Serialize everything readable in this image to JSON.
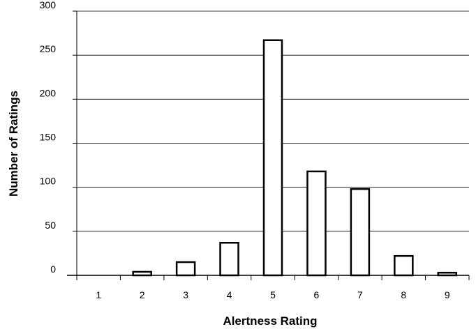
{
  "chart_data": {
    "type": "bar",
    "title": "",
    "xlabel": "Alertness Rating",
    "ylabel": "Number of Ratings",
    "categories": [
      "1",
      "2",
      "3",
      "4",
      "5",
      "6",
      "7",
      "8",
      "9"
    ],
    "values": [
      0,
      4,
      15,
      37,
      267,
      118,
      98,
      22,
      3
    ],
    "ylim": [
      0,
      300
    ],
    "yticks": [
      0,
      50,
      100,
      150,
      200,
      250,
      300
    ],
    "grid": true,
    "legend": "none",
    "bar_fill": "#ffffff",
    "bar_stroke": "#000000"
  }
}
